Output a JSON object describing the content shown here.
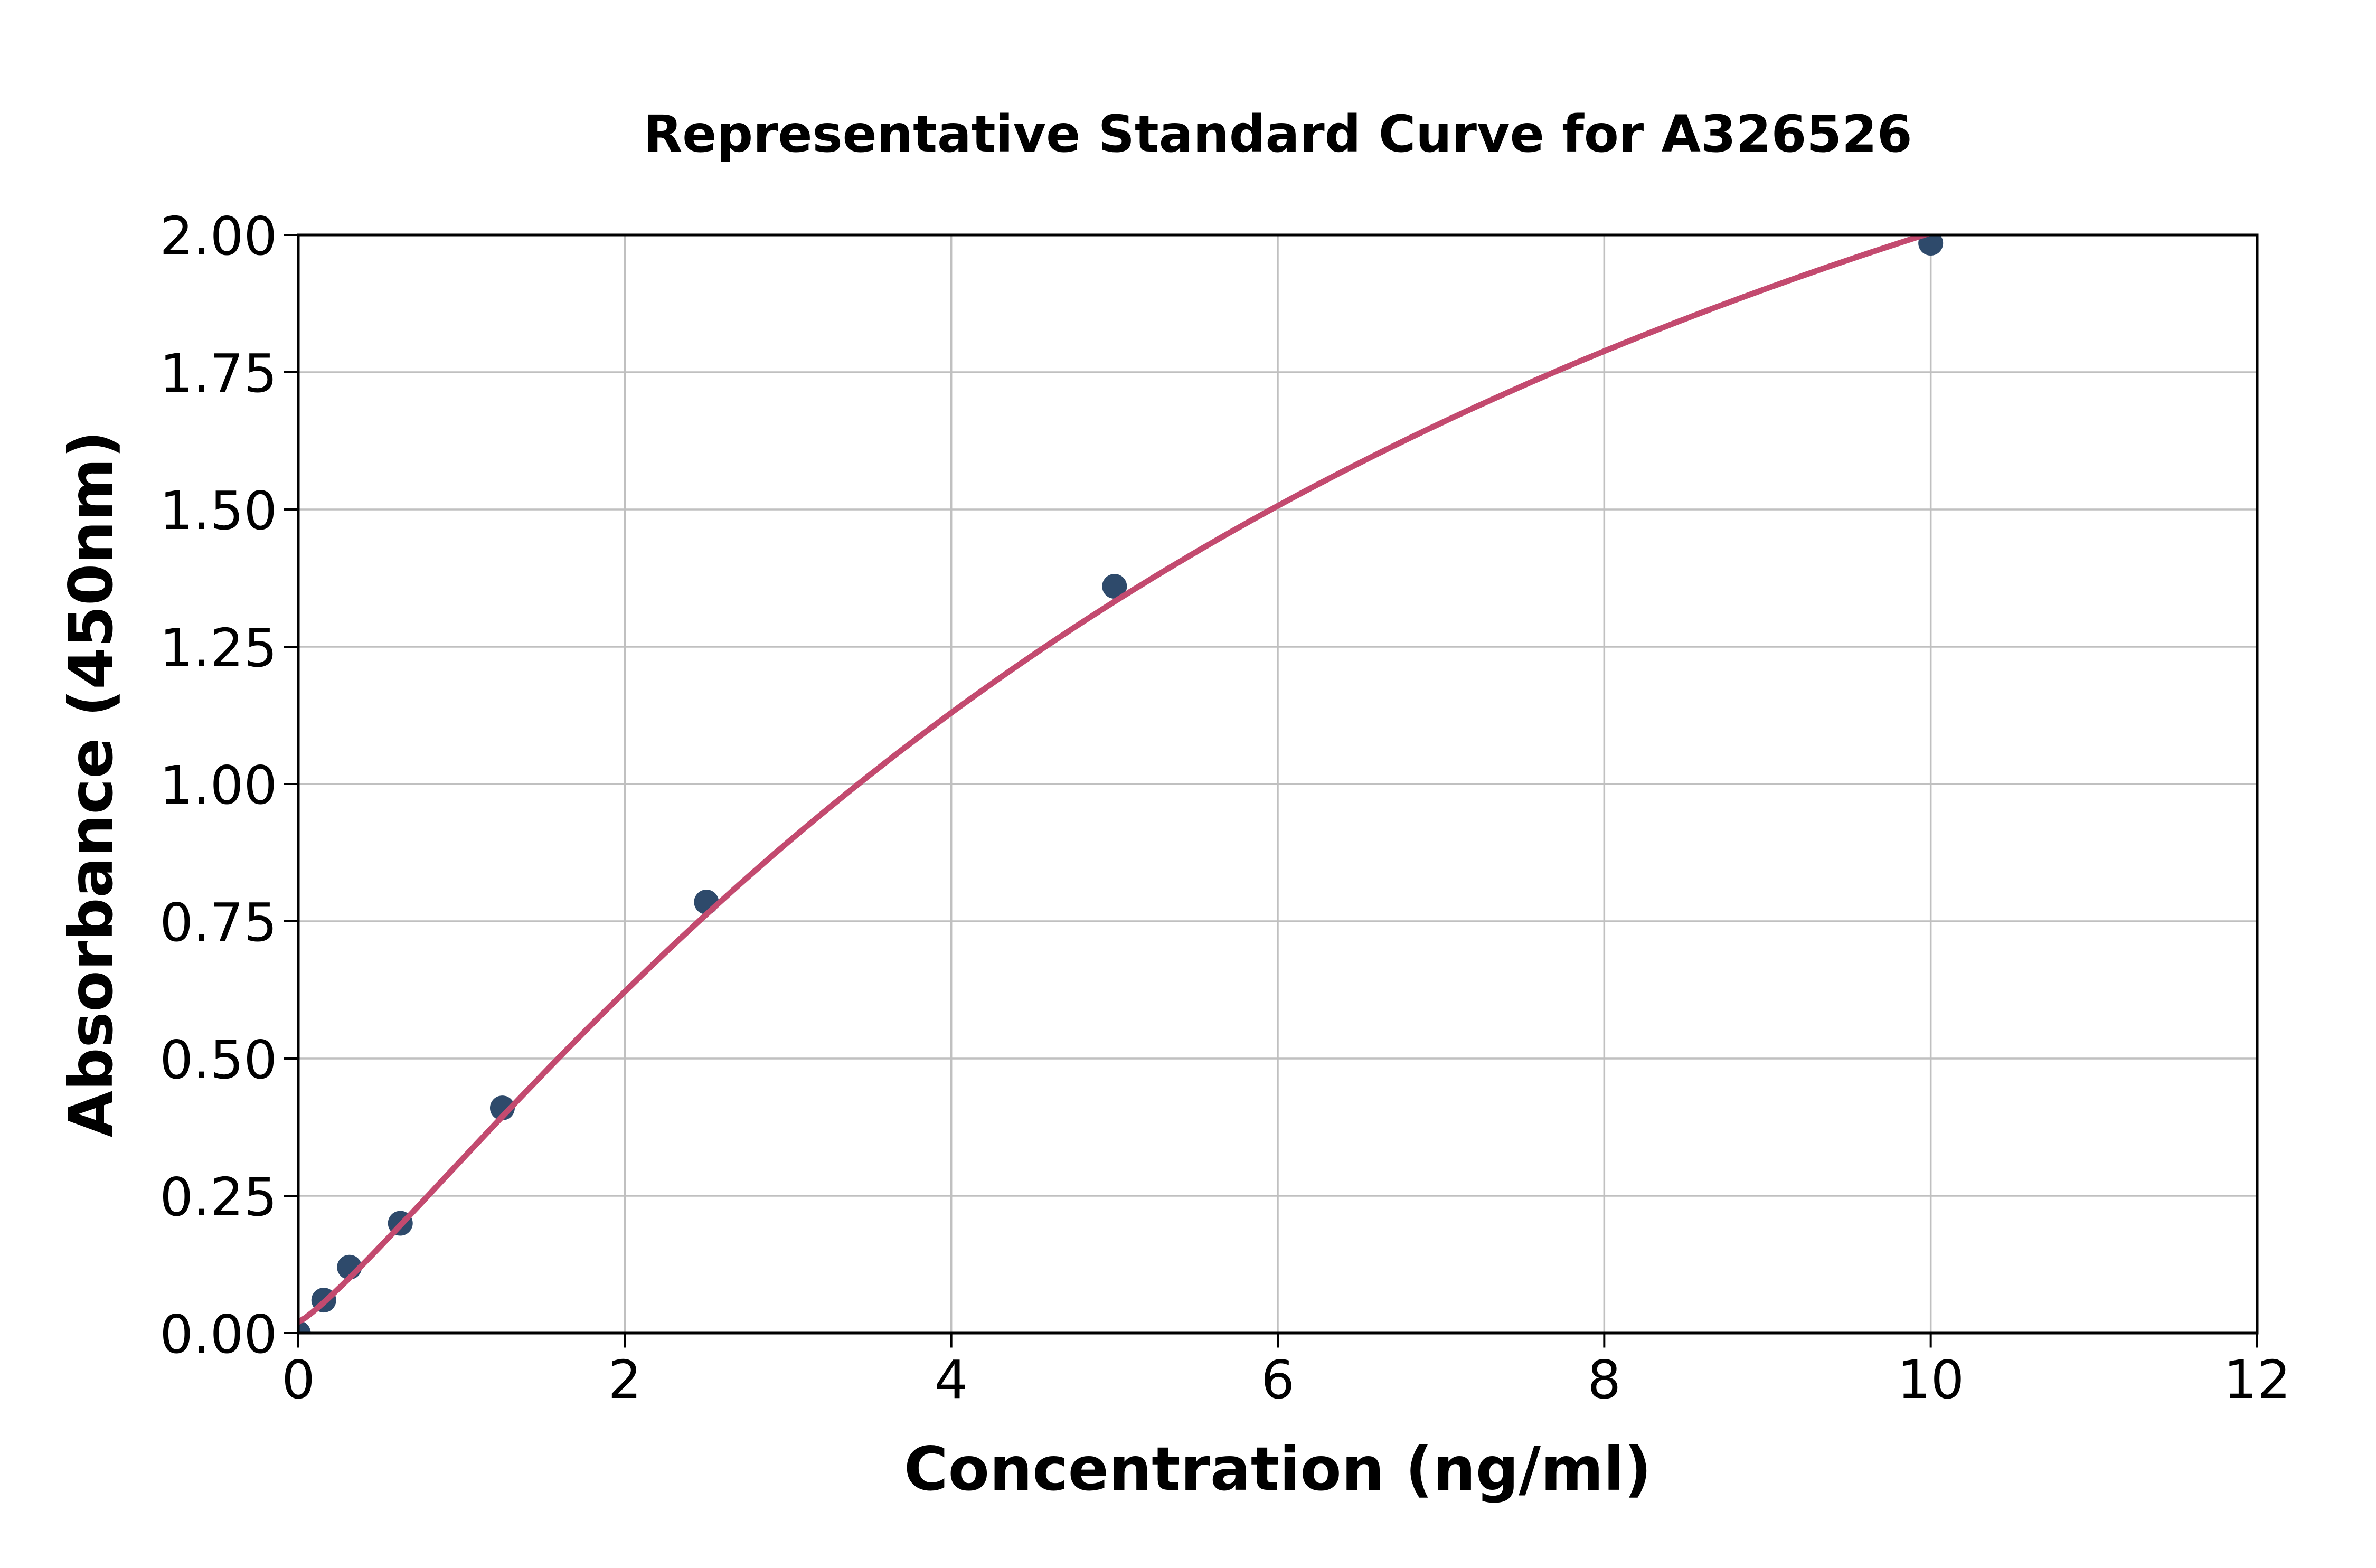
{
  "chart_data": {
    "type": "scatter",
    "title": "Representative Standard Curve for A326526",
    "xlabel": "Concentration (ng/ml)",
    "ylabel": "Absorbance (450nm)",
    "xlim": [
      0,
      12
    ],
    "ylim": [
      0.0,
      2.0
    ],
    "x_ticks": [
      0,
      2,
      4,
      6,
      8,
      10,
      12
    ],
    "x_tick_labels": [
      "0",
      "2",
      "4",
      "6",
      "8",
      "10",
      "12"
    ],
    "y_ticks": [
      0.0,
      0.25,
      0.5,
      0.75,
      1.0,
      1.25,
      1.5,
      1.75,
      2.0
    ],
    "y_tick_labels": [
      "0.00",
      "0.25",
      "0.50",
      "0.75",
      "1.00",
      "1.25",
      "1.50",
      "1.75",
      "2.00"
    ],
    "grid": true,
    "legend": null,
    "points": {
      "x": [
        0,
        0.156,
        0.313,
        0.625,
        1.25,
        2.5,
        5,
        10
      ],
      "y": [
        0.0,
        0.06,
        0.12,
        0.2,
        0.41,
        0.785,
        1.36,
        1.985
      ]
    },
    "fit_curve": {
      "model": "4PL",
      "params": {
        "a": 0.02,
        "b": 1.18,
        "c": 7.2,
        "d": 3.35
      },
      "x_range": [
        0,
        10
      ]
    },
    "styles": {
      "point_color": "#2e4a6b",
      "curve_color": "#c34a6f",
      "grid_color": "#c0c0c0",
      "axis_color": "#000000",
      "text_color": "#000000",
      "background": "#ffffff"
    }
  }
}
